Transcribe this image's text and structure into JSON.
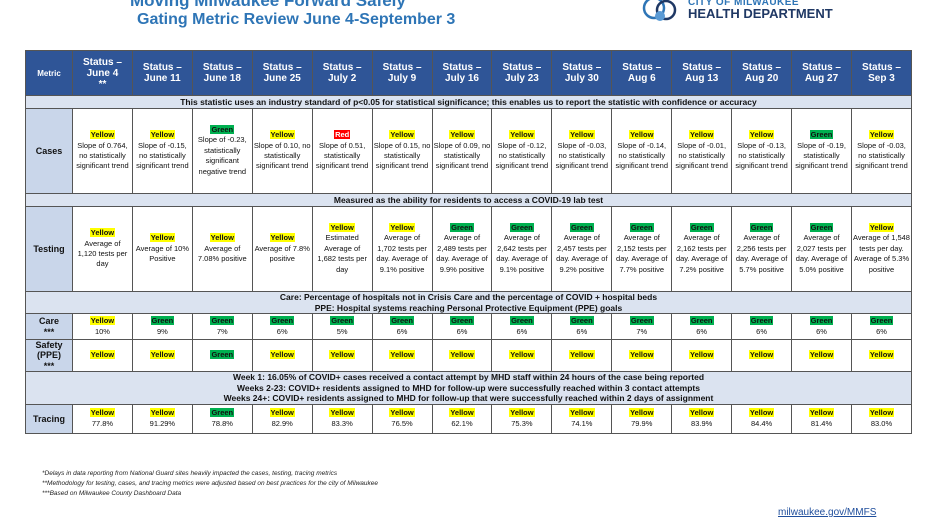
{
  "header": {
    "title": "Moving Milwaukee Forward Safely",
    "subtitle": "Gating Metric Review June 4-September 3",
    "logo_line1": "CITY OF MILWAUKEE",
    "logo_line2": "HEALTH DEPARTMENT"
  },
  "table": {
    "corner": "Metric",
    "columns": [
      {
        "label": "Status –",
        "date": "June 4",
        "note": "**"
      },
      {
        "label": "Status –",
        "date": "June 11"
      },
      {
        "label": "Status –",
        "date": "June 18"
      },
      {
        "label": "Status –",
        "date": "June 25"
      },
      {
        "label": "Status –",
        "date": "July 2"
      },
      {
        "label": "Status –",
        "date": "July 9"
      },
      {
        "label": "Status –",
        "date": "July 16"
      },
      {
        "label": "Status –",
        "date": "July 23"
      },
      {
        "label": "Status –",
        "date": "July 30"
      },
      {
        "label": "Status –",
        "date": "Aug 6"
      },
      {
        "label": "Status –",
        "date": "Aug 13"
      },
      {
        "label": "Status –",
        "date": "Aug 20"
      },
      {
        "label": "Status –",
        "date": "Aug 27"
      },
      {
        "label": "Status –",
        "date": "Sep 3"
      }
    ],
    "rows": [
      {
        "kind": "note",
        "lines": [
          "This statistic uses an industry standard of p<0.05 for statistical significance; this enables us to report the statistic with confidence or accuracy"
        ]
      },
      {
        "kind": "metric",
        "id": "cases",
        "metric": "Cases",
        "cells": [
          {
            "status": "Yellow",
            "text": "Slope of 0.764, no statistically significant trend"
          },
          {
            "status": "Yellow",
            "text": "Slope of -0.15, no statistically significant trend"
          },
          {
            "status": "Green",
            "text": "Slope of -0.23, statistically significant negative trend"
          },
          {
            "status": "Yellow",
            "text": "Slope of 0.10, no statistically significant trend"
          },
          {
            "status": "Red",
            "text": "Slope of 0.51, statistically significant trend"
          },
          {
            "status": "Yellow",
            "text": "Slope of 0.15, no statistically significant trend"
          },
          {
            "status": "Yellow",
            "text": "Slope of 0.09, no statistically significant trend"
          },
          {
            "status": "Yellow",
            "text": "Slope of -0.12, no statistically significant trend"
          },
          {
            "status": "Yellow",
            "text": "Slope of -0.03, no statistically significant trend"
          },
          {
            "status": "Yellow",
            "text": "Slope of -0.14, no statistically significant trend"
          },
          {
            "status": "Yellow",
            "text": "Slope of -0.01, no statistically significant trend"
          },
          {
            "status": "Yellow",
            "text": "Slope of -0.13, no statistically significant trend"
          },
          {
            "status": "Green",
            "text": "Slope of -0.19, statistically significant trend"
          },
          {
            "status": "Yellow",
            "text": "Slope of -0.03, no statistically significant trend"
          }
        ]
      },
      {
        "kind": "note",
        "lines": [
          "Measured as the ability for residents to access a COVID-19 lab test"
        ]
      },
      {
        "kind": "metric",
        "id": "testing",
        "metric": "Testing",
        "cells": [
          {
            "status": "Yellow",
            "text": "Average of 1,120 tests per day"
          },
          {
            "status": "Yellow",
            "text": "Average of 10% Positive"
          },
          {
            "status": "Yellow",
            "text": "Average of 7.08% positive"
          },
          {
            "status": "Yellow",
            "text": "Average of 7.8% positive"
          },
          {
            "status": "Yellow",
            "text": "Estimated Average of 1,682 tests per day"
          },
          {
            "status": "Yellow",
            "text": "Average of 1,702 tests per day. Average of 9.1% positive"
          },
          {
            "status": "Green",
            "text": "Average of 2,489 tests per day. Average of 9.9% positive"
          },
          {
            "status": "Green",
            "text": "Average of 2,642 tests per day. Average of 9.1% positive"
          },
          {
            "status": "Green",
            "text": "Average of 2,457 tests per day. Average of 9.2% positive"
          },
          {
            "status": "Green",
            "text": "Average of 2,152 tests per day. Average of 7.7% positive"
          },
          {
            "status": "Green",
            "text": "Average of 2,162 tests per day. Average of 7.2% positive"
          },
          {
            "status": "Green",
            "text": "Average of 2,256 tests per day. Average of 5.7% positive"
          },
          {
            "status": "Green",
            "text": "Average of 2,027 tests per day. Average of 5.0% positive"
          },
          {
            "status": "Yellow",
            "text": "Average of 1,548 tests per day. Average of 5.3% positive"
          }
        ]
      },
      {
        "kind": "note",
        "lines": [
          "Care: Percentage of hospitals not in Crisis Care and the percentage of COVID + hospital beds",
          "PPE: Hospital systems reaching Personal Protective Equipment (PPE) goals"
        ]
      },
      {
        "kind": "metric",
        "id": "care",
        "metric": "Care",
        "metric_note": "***",
        "cells": [
          {
            "status": "Yellow",
            "text": "10%"
          },
          {
            "status": "Green",
            "text": "9%"
          },
          {
            "status": "Green",
            "text": "7%"
          },
          {
            "status": "Green",
            "text": "6%"
          },
          {
            "status": "Green",
            "text": "5%"
          },
          {
            "status": "Green",
            "text": "6%"
          },
          {
            "status": "Green",
            "text": "6%"
          },
          {
            "status": "Green",
            "text": "6%"
          },
          {
            "status": "Green",
            "text": "6%"
          },
          {
            "status": "Green",
            "text": "7%"
          },
          {
            "status": "Green",
            "text": "6%"
          },
          {
            "status": "Green",
            "text": "6%"
          },
          {
            "status": "Green",
            "text": "6%"
          },
          {
            "status": "Green",
            "text": "6%"
          }
        ]
      },
      {
        "kind": "metric",
        "id": "safety",
        "metric": "Safety (PPE)",
        "metric_note": "***",
        "cells": [
          {
            "status": "Yellow"
          },
          {
            "status": "Yellow"
          },
          {
            "status": "Green"
          },
          {
            "status": "Yellow"
          },
          {
            "status": "Yellow"
          },
          {
            "status": "Yellow"
          },
          {
            "status": "Yellow"
          },
          {
            "status": "Yellow"
          },
          {
            "status": "Yellow"
          },
          {
            "status": "Yellow"
          },
          {
            "status": "Yellow"
          },
          {
            "status": "Yellow"
          },
          {
            "status": "Yellow"
          },
          {
            "status": "Yellow"
          }
        ]
      },
      {
        "kind": "note",
        "lines": [
          "Week 1: 16.05% of COVID+ cases received a contact attempt by MHD staff within 24 hours of the case being reported",
          "Weeks 2-23: COVID+ residents assigned to MHD for follow-up were successfully reached within 3 contact attempts",
          "Weeks 24+: COVID+ residents assigned to MHD for follow-up that were successfully reached within 2 days of assignment"
        ]
      },
      {
        "kind": "metric",
        "id": "tracing",
        "metric": "Tracing",
        "cells": [
          {
            "status": "Yellow",
            "text": "77.8%"
          },
          {
            "status": "Yellow",
            "text": "91.29%"
          },
          {
            "status": "Green",
            "text": "78.8%"
          },
          {
            "status": "Yellow",
            "text": "82.9%"
          },
          {
            "status": "Yellow",
            "text": "83.3%"
          },
          {
            "status": "Yellow",
            "text": "76.5%"
          },
          {
            "status": "Yellow",
            "text": "62.1%"
          },
          {
            "status": "Yellow",
            "text": "75.3%"
          },
          {
            "status": "Yellow",
            "text": "74.1%"
          },
          {
            "status": "Yellow",
            "text": "79.9%"
          },
          {
            "status": "Yellow",
            "text": "83.9%"
          },
          {
            "status": "Yellow",
            "text": "84.4%"
          },
          {
            "status": "Yellow",
            "text": "81.4%"
          },
          {
            "status": "Yellow",
            "text": "83.0%"
          }
        ]
      }
    ]
  },
  "footnotes": [
    "*Delays in data reporting from National Guard sites heavily impacted the cases, testing, tracing metrics",
    "**Methodology for testing, cases, and tracing metrics were adjusted based on best practices for the city of Milwaukee",
    "***Based on Milwaukee County Dashboard Data"
  ],
  "link": "milwaukee.gov/MMFS"
}
